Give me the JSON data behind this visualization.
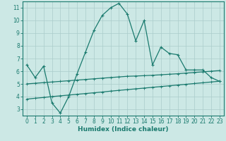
{
  "main_x": [
    0,
    1,
    2,
    3,
    4,
    5,
    6,
    7,
    8,
    9,
    10,
    11,
    12,
    13,
    14,
    15,
    16,
    17,
    18,
    19,
    20,
    21,
    22,
    23
  ],
  "main_y": [
    6.5,
    5.5,
    6.4,
    3.5,
    2.7,
    4.0,
    5.8,
    7.5,
    9.2,
    10.4,
    11.0,
    11.35,
    10.5,
    8.4,
    10.0,
    6.5,
    7.9,
    7.4,
    7.3,
    6.1,
    6.1,
    6.1,
    5.5,
    5.2
  ],
  "upper_x": [
    0,
    1,
    2,
    3,
    4,
    5,
    6,
    7,
    8,
    9,
    10,
    11,
    12,
    13,
    14,
    15,
    16,
    17,
    18,
    19,
    20,
    21,
    22,
    23
  ],
  "upper_y": [
    5.0,
    5.05,
    5.1,
    5.15,
    5.2,
    5.25,
    5.3,
    5.35,
    5.4,
    5.45,
    5.5,
    5.55,
    5.6,
    5.62,
    5.65,
    5.68,
    5.72,
    5.76,
    5.8,
    5.85,
    5.9,
    5.95,
    6.0,
    6.05
  ],
  "lower_x": [
    0,
    1,
    2,
    3,
    4,
    5,
    6,
    7,
    8,
    9,
    10,
    11,
    12,
    13,
    14,
    15,
    16,
    17,
    18,
    19,
    20,
    21,
    22,
    23
  ],
  "lower_y": [
    3.8,
    3.87,
    3.93,
    4.0,
    4.06,
    4.12,
    4.18,
    4.24,
    4.3,
    4.36,
    4.43,
    4.49,
    4.55,
    4.61,
    4.67,
    4.73,
    4.79,
    4.85,
    4.91,
    4.97,
    5.03,
    5.09,
    5.15,
    5.21
  ],
  "line_color": "#1a7a6e",
  "bg_color": "#cce8e5",
  "grid_color": "#aaccca",
  "xlabel": "Humidex (Indice chaleur)",
  "xlim": [
    -0.5,
    23.5
  ],
  "ylim": [
    2.5,
    11.5
  ],
  "yticks": [
    3,
    4,
    5,
    6,
    7,
    8,
    9,
    10,
    11
  ],
  "xticks": [
    0,
    1,
    2,
    3,
    4,
    5,
    6,
    7,
    8,
    9,
    10,
    11,
    12,
    13,
    14,
    15,
    16,
    17,
    18,
    19,
    20,
    21,
    22,
    23
  ],
  "tick_fontsize": 5.5,
  "xlabel_fontsize": 6.5,
  "marker_size": 3.5,
  "line_width": 0.9
}
